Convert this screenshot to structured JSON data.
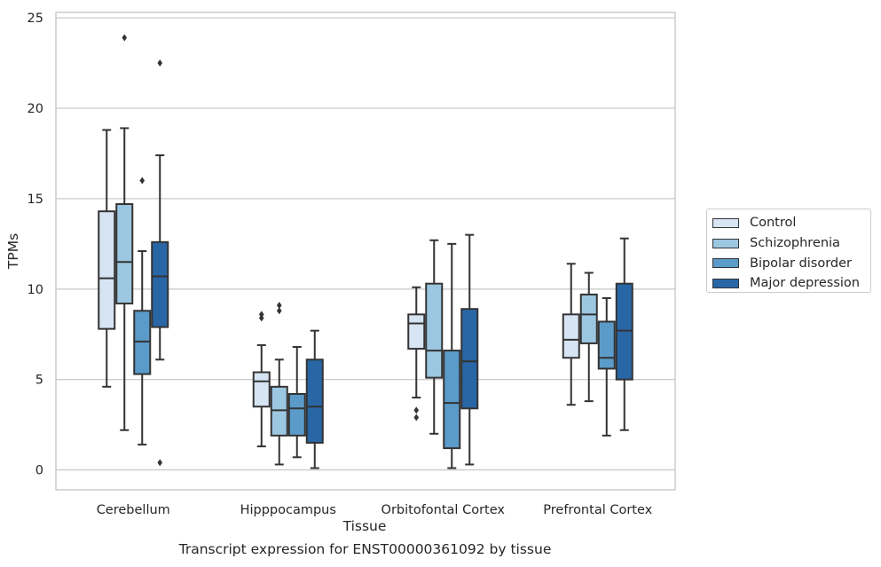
{
  "chart_data": {
    "type": "box",
    "xlabel": "Tissue",
    "ylabel": "TPMs",
    "ylim": [
      -1.1,
      25.3
    ],
    "yticks": [
      0,
      5,
      10,
      15,
      20,
      25
    ],
    "grid": "horizontal",
    "legend_position": "right",
    "categories": [
      "Cerebellum",
      "Hipppocampus",
      "Orbitofontal Cortex",
      "Prefrontal Cortex"
    ],
    "series": [
      {
        "name": "Control",
        "color": "#d6e4f3",
        "boxes": [
          {
            "whislo": 4.6,
            "q1": 7.8,
            "med": 10.6,
            "q3": 14.3,
            "whishi": 18.8,
            "fliers": []
          },
          {
            "whislo": 1.3,
            "q1": 3.5,
            "med": 4.9,
            "q3": 5.4,
            "whishi": 6.9,
            "fliers": [
              8.4,
              8.6
            ]
          },
          {
            "whislo": 4.0,
            "q1": 6.7,
            "med": 8.1,
            "q3": 8.6,
            "whishi": 10.1,
            "fliers": [
              2.9,
              3.3
            ]
          },
          {
            "whislo": 3.6,
            "q1": 6.2,
            "med": 7.2,
            "q3": 8.6,
            "whishi": 11.4,
            "fliers": []
          }
        ]
      },
      {
        "name": "Schizophrenia",
        "color": "#9cc7e0",
        "boxes": [
          {
            "whislo": 2.2,
            "q1": 9.2,
            "med": 11.5,
            "q3": 14.7,
            "whishi": 18.9,
            "fliers": [
              23.9
            ]
          },
          {
            "whislo": 0.3,
            "q1": 1.9,
            "med": 3.3,
            "q3": 4.6,
            "whishi": 6.1,
            "fliers": [
              8.8,
              9.1
            ]
          },
          {
            "whislo": 2.0,
            "q1": 5.1,
            "med": 6.6,
            "q3": 10.3,
            "whishi": 12.7,
            "fliers": []
          },
          {
            "whislo": 3.8,
            "q1": 7.0,
            "med": 8.6,
            "q3": 9.7,
            "whishi": 10.9,
            "fliers": []
          }
        ]
      },
      {
        "name": "Bipolar disorder",
        "color": "#5a9bc9",
        "boxes": [
          {
            "whislo": 1.4,
            "q1": 5.3,
            "med": 7.1,
            "q3": 8.8,
            "whishi": 12.1,
            "fliers": [
              16.0
            ]
          },
          {
            "whislo": 0.7,
            "q1": 1.9,
            "med": 3.4,
            "q3": 4.2,
            "whishi": 6.8,
            "fliers": []
          },
          {
            "whislo": 0.1,
            "q1": 1.2,
            "med": 3.7,
            "q3": 6.6,
            "whishi": 12.5,
            "fliers": []
          },
          {
            "whislo": 1.9,
            "q1": 5.6,
            "med": 6.2,
            "q3": 8.2,
            "whishi": 9.5,
            "fliers": []
          }
        ]
      },
      {
        "name": "Major depression",
        "color": "#2866a6",
        "boxes": [
          {
            "whislo": 6.1,
            "q1": 7.9,
            "med": 10.7,
            "q3": 12.6,
            "whishi": 17.4,
            "fliers": [
              0.4,
              22.5
            ]
          },
          {
            "whislo": 0.1,
            "q1": 1.5,
            "med": 3.5,
            "q3": 6.1,
            "whishi": 7.7,
            "fliers": []
          },
          {
            "whislo": 0.3,
            "q1": 3.4,
            "med": 6.0,
            "q3": 8.9,
            "whishi": 13.0,
            "fliers": []
          },
          {
            "whislo": 2.2,
            "q1": 5.0,
            "med": 7.7,
            "q3": 10.3,
            "whishi": 12.8,
            "fliers": []
          }
        ]
      }
    ]
  },
  "caption": "Transcript expression for ENST00000361092 by tissue"
}
